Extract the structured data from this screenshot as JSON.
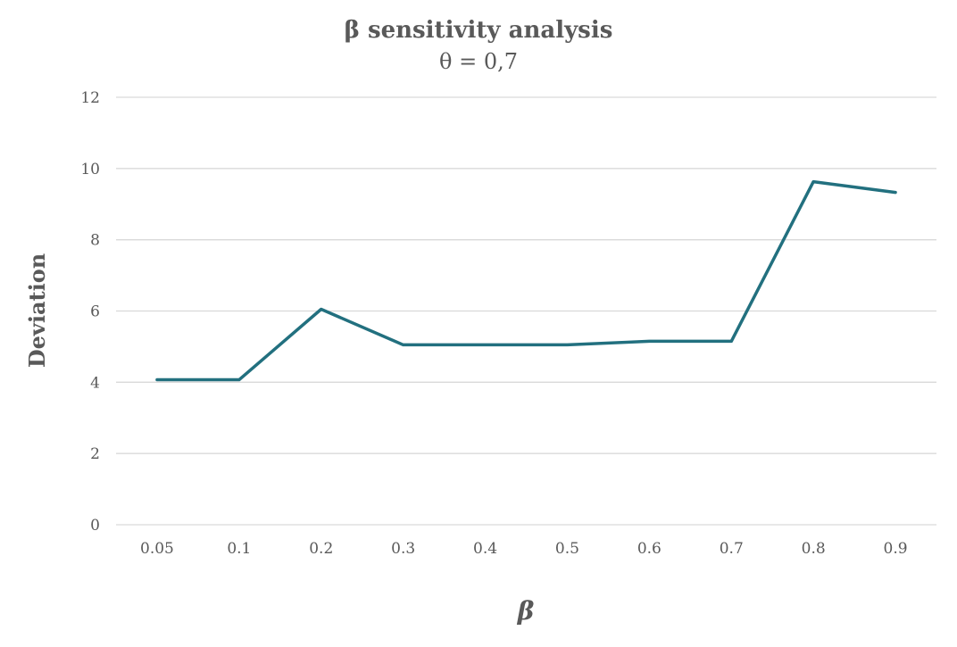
{
  "chart_data": {
    "type": "line",
    "title": "β sensitivity analysis",
    "subtitle": "θ = 0,7",
    "xlabel": "β",
    "ylabel": "Deviation",
    "categories": [
      "0.05",
      "0.1",
      "0.2",
      "0.3",
      "0.4",
      "0.5",
      "0.6",
      "0.7",
      "0.8",
      "0.9"
    ],
    "series": [
      {
        "values": [
          4.07,
          4.07,
          6.05,
          5.05,
          5.05,
          5.05,
          5.15,
          5.15,
          9.63,
          9.33
        ],
        "color": "#22707f"
      }
    ],
    "ylim": [
      0,
      12
    ],
    "yticks": [
      "0",
      "2",
      "4",
      "6",
      "8",
      "10",
      "12"
    ],
    "grid": true,
    "legend": "none"
  }
}
